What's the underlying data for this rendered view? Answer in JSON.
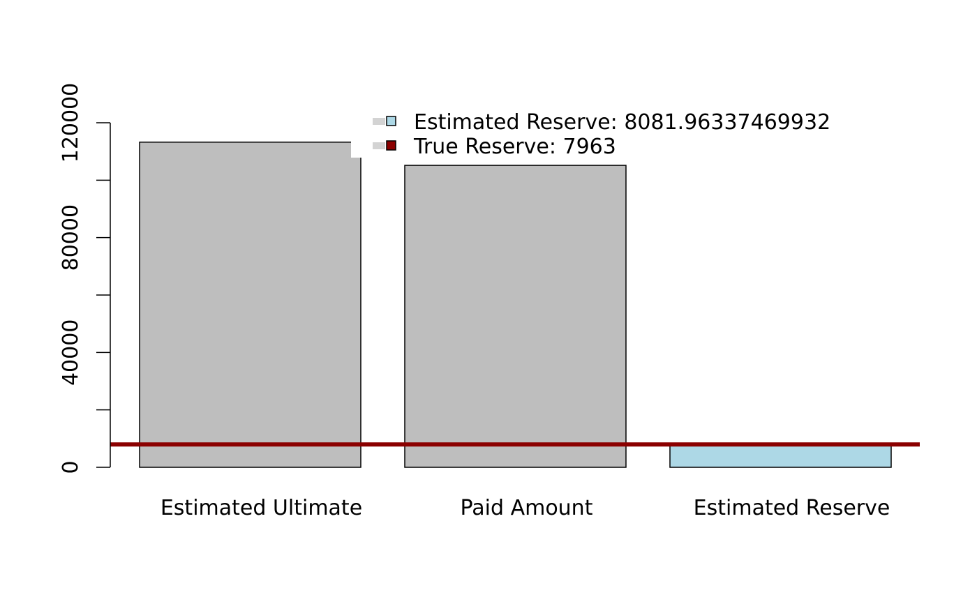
{
  "chart_data": {
    "type": "bar",
    "categories": [
      "Estimated Ultimate",
      "Paid Amount",
      "Estimated Reserve"
    ],
    "values": [
      113245,
      105163,
      8081.96337469932
    ],
    "bar_colors": [
      "#bebebe",
      "#bebebe",
      "#add8e6"
    ],
    "ylim": [
      0,
      120000
    ],
    "yticks": [
      0,
      20000,
      40000,
      60000,
      80000,
      100000,
      120000
    ],
    "ytick_labels": [
      "0",
      "40000",
      "80000",
      "120000"
    ],
    "ytick_label_values": [
      0,
      40000,
      80000,
      120000
    ],
    "hline": {
      "value": 7963,
      "color": "#8b0000"
    },
    "grid": false,
    "legend": {
      "placement": "top-center",
      "entries": [
        {
          "label": "Estimated Reserve: 8081.96337469932",
          "color": "#add8e6"
        },
        {
          "label": "True Reserve: 7963",
          "color": "#8b0000"
        }
      ]
    },
    "title": "",
    "xlabel": "",
    "ylabel": ""
  }
}
